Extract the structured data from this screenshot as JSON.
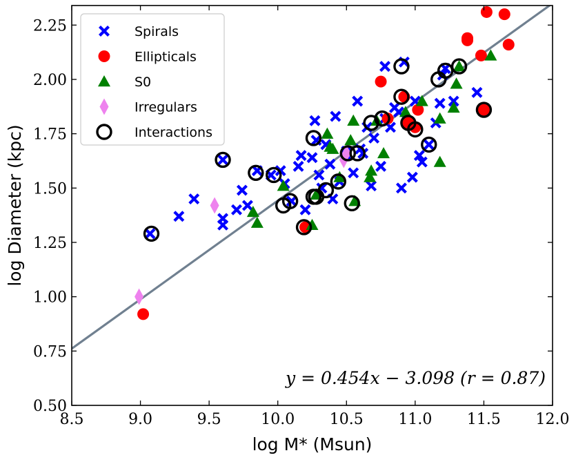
{
  "chart_data": {
    "type": "scatter",
    "title": "",
    "xlabel": "log M* (Msun)",
    "ylabel": "log Diameter (kpc)",
    "xlim": [
      8.5,
      12.0
    ],
    "ylim": [
      0.5,
      2.34
    ],
    "xticks": [
      "8.5",
      "9.0",
      "9.5",
      "10.0",
      "10.5",
      "11.0",
      "11.5",
      "12.0"
    ],
    "yticks": [
      "0.50",
      "0.75",
      "1.00",
      "1.25",
      "1.50",
      "1.75",
      "2.00",
      "2.25"
    ],
    "legend_position": "top-left",
    "fit": {
      "slope": 0.454,
      "intercept": -3.098,
      "label": "y = 0.454x − 3.098 (r = 0.87)",
      "color": "#708090"
    },
    "series": [
      {
        "name": "Spirals",
        "marker": "x",
        "color": "#0000ff",
        "points": [
          [
            9.07,
            1.29
          ],
          [
            9.28,
            1.37
          ],
          [
            9.39,
            1.45
          ],
          [
            9.6,
            1.33
          ],
          [
            9.6,
            1.36
          ],
          [
            9.6,
            1.63
          ],
          [
            9.7,
            1.4
          ],
          [
            9.74,
            1.49
          ],
          [
            9.78,
            1.42
          ],
          [
            9.85,
            1.58
          ],
          [
            9.95,
            1.56
          ],
          [
            10.02,
            1.58
          ],
          [
            10.05,
            1.52
          ],
          [
            10.1,
            1.44
          ],
          [
            10.15,
            1.6
          ],
          [
            10.17,
            1.65
          ],
          [
            10.2,
            1.4
          ],
          [
            10.25,
            1.64
          ],
          [
            10.27,
            1.81
          ],
          [
            10.28,
            1.72
          ],
          [
            10.3,
            1.56
          ],
          [
            10.32,
            1.5
          ],
          [
            10.35,
            1.7
          ],
          [
            10.38,
            1.61
          ],
          [
            10.4,
            1.45
          ],
          [
            10.42,
            1.83
          ],
          [
            10.45,
            1.53
          ],
          [
            10.5,
            1.65
          ],
          [
            10.55,
            1.57
          ],
          [
            10.58,
            1.9
          ],
          [
            10.6,
            1.68
          ],
          [
            10.65,
            1.78
          ],
          [
            10.68,
            1.51
          ],
          [
            10.7,
            1.73
          ],
          [
            10.75,
            1.6
          ],
          [
            10.78,
            1.82
          ],
          [
            10.78,
            2.06
          ],
          [
            10.82,
            1.78
          ],
          [
            10.85,
            1.87
          ],
          [
            10.88,
            1.85
          ],
          [
            10.9,
            1.5
          ],
          [
            10.92,
            2.08
          ],
          [
            10.95,
            1.8
          ],
          [
            10.98,
            1.55
          ],
          [
            11.0,
            1.9
          ],
          [
            11.03,
            1.65
          ],
          [
            11.05,
            1.62
          ],
          [
            11.1,
            1.7
          ],
          [
            11.15,
            1.8
          ],
          [
            11.18,
            1.89
          ],
          [
            11.2,
            2.02
          ],
          [
            11.22,
            2.05
          ],
          [
            11.28,
            1.9
          ],
          [
            11.45,
            1.94
          ],
          [
            10.62,
            1.66
          ],
          [
            10.5,
            1.67
          ]
        ]
      },
      {
        "name": "Ellipticals",
        "marker": "o",
        "color": "#ff0000",
        "points": [
          [
            9.02,
            0.92
          ],
          [
            10.2,
            1.32
          ],
          [
            10.75,
            1.99
          ],
          [
            10.8,
            1.82
          ],
          [
            10.92,
            1.92
          ],
          [
            10.95,
            1.8
          ],
          [
            11.0,
            1.78
          ],
          [
            11.02,
            1.86
          ],
          [
            11.38,
            2.19
          ],
          [
            11.38,
            2.18
          ],
          [
            11.48,
            2.11
          ],
          [
            11.52,
            2.31
          ],
          [
            11.65,
            2.3
          ],
          [
            11.68,
            2.16
          ],
          [
            11.5,
            1.86
          ]
        ]
      },
      {
        "name": "S0",
        "marker": "^",
        "color": "#008000",
        "points": [
          [
            9.82,
            1.39
          ],
          [
            9.85,
            1.34
          ],
          [
            10.04,
            1.51
          ],
          [
            10.25,
            1.33
          ],
          [
            10.28,
            1.47
          ],
          [
            10.36,
            1.75
          ],
          [
            10.38,
            1.69
          ],
          [
            10.4,
            1.68
          ],
          [
            10.45,
            1.55
          ],
          [
            10.53,
            1.72
          ],
          [
            10.55,
            1.81
          ],
          [
            10.56,
            1.44
          ],
          [
            10.67,
            1.55
          ],
          [
            10.68,
            1.58
          ],
          [
            10.72,
            1.81
          ],
          [
            10.77,
            1.66
          ],
          [
            10.93,
            1.85
          ],
          [
            11.05,
            1.9
          ],
          [
            11.18,
            1.62
          ],
          [
            11.18,
            1.82
          ],
          [
            11.28,
            1.87
          ],
          [
            11.3,
            1.98
          ],
          [
            11.32,
            2.06
          ],
          [
            11.55,
            2.11
          ]
        ]
      },
      {
        "name": "Irregulars",
        "marker": "d",
        "color": "#ee82ee",
        "points": [
          [
            8.99,
            1.0
          ],
          [
            9.54,
            1.42
          ],
          [
            10.48,
            1.63
          ],
          [
            10.5,
            1.66
          ]
        ]
      },
      {
        "name": "Interactions",
        "marker": "ring",
        "color": "#000000",
        "points": [
          [
            9.08,
            1.29
          ],
          [
            9.6,
            1.63
          ],
          [
            9.84,
            1.57
          ],
          [
            9.97,
            1.56
          ],
          [
            10.04,
            1.42
          ],
          [
            10.09,
            1.44
          ],
          [
            10.19,
            1.32
          ],
          [
            10.26,
            1.73
          ],
          [
            10.26,
            1.46
          ],
          [
            10.28,
            1.46
          ],
          [
            10.35,
            1.49
          ],
          [
            10.44,
            1.53
          ],
          [
            10.51,
            1.66
          ],
          [
            10.54,
            1.43
          ],
          [
            10.58,
            1.66
          ],
          [
            10.68,
            1.8
          ],
          [
            10.76,
            1.82
          ],
          [
            10.9,
            1.92
          ],
          [
            10.9,
            2.06
          ],
          [
            10.95,
            1.8
          ],
          [
            11.0,
            1.77
          ],
          [
            11.1,
            1.7
          ],
          [
            11.17,
            2.0
          ],
          [
            11.22,
            2.04
          ],
          [
            11.32,
            2.06
          ],
          [
            11.5,
            1.86
          ]
        ]
      }
    ]
  }
}
